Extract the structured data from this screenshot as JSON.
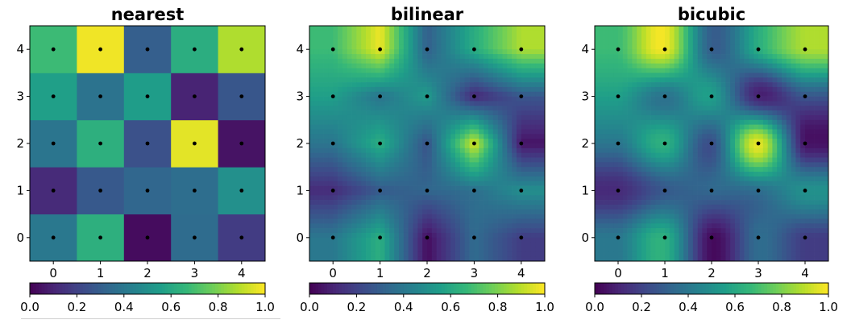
{
  "chart_data": [
    {
      "type": "heatmap",
      "title": "nearest",
      "x_ticks": [
        "0",
        "1",
        "2",
        "3",
        "4"
      ],
      "y_ticks": [
        "0",
        "1",
        "2",
        "3",
        "4"
      ],
      "grid_points": true,
      "z": [
        [
          0.4,
          0.63,
          0.03,
          0.35,
          0.18
        ],
        [
          0.12,
          0.28,
          0.33,
          0.36,
          0.5
        ],
        [
          0.39,
          0.63,
          0.25,
          0.96,
          0.05
        ],
        [
          0.56,
          0.38,
          0.55,
          0.1,
          0.27
        ],
        [
          0.68,
          0.98,
          0.3,
          0.62,
          0.88
        ]
      ],
      "colorbar": {
        "ticks": [
          "0.0",
          "0.2",
          "0.4",
          "0.6",
          "0.8",
          "1.0"
        ],
        "range": [
          0,
          1
        ]
      }
    },
    {
      "type": "heatmap",
      "title": "bilinear",
      "x_ticks": [
        "0",
        "1",
        "2",
        "3",
        "4"
      ],
      "y_ticks": [
        "0",
        "1",
        "2",
        "3",
        "4"
      ],
      "grid_points": true,
      "interpolation": "bilinear",
      "z": "same as nearest",
      "colorbar": {
        "ticks": [
          "0.0",
          "0.2",
          "0.4",
          "0.6",
          "0.8",
          "1.0"
        ],
        "range": [
          0,
          1
        ]
      }
    },
    {
      "type": "heatmap",
      "title": "bicubic",
      "x_ticks": [
        "0",
        "1",
        "2",
        "3",
        "4"
      ],
      "y_ticks": [
        "0",
        "1",
        "2",
        "3",
        "4"
      ],
      "grid_points": true,
      "interpolation": "bicubic",
      "z": "same as nearest",
      "colorbar": {
        "ticks": [
          "0.0",
          "0.2",
          "0.4",
          "0.6",
          "0.8",
          "1.0"
        ],
        "range": [
          0,
          1
        ]
      }
    }
  ],
  "colormap": [
    "#440154",
    "#482878",
    "#3e4989",
    "#31688e",
    "#26828e",
    "#1f9e89",
    "#35b779",
    "#6ece58",
    "#b5de2b",
    "#fde725"
  ],
  "point_color": "#000000"
}
